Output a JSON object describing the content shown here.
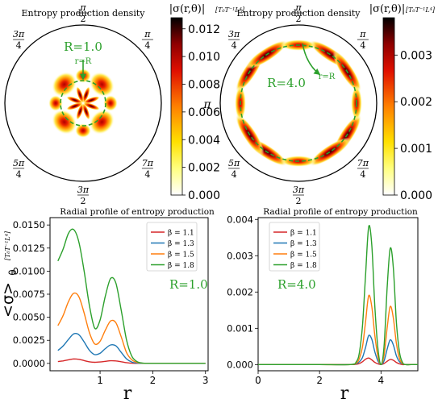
{
  "colors": {
    "series": [
      "#d62728",
      "#1f77b4",
      "#ff7f0e",
      "#2ca02c"
    ],
    "annotation": "#2ca02c",
    "circle": "#000000"
  },
  "polar_angle_labels": [
    {
      "num": "π",
      "den": "2",
      "angle_deg": 90
    },
    {
      "num": "π",
      "den": "4",
      "angle_deg": 45
    },
    {
      "num": "",
      "den": "",
      "text": "0",
      "angle_deg": 0
    },
    {
      "num": "7π",
      "den": "4",
      "angle_deg": -45
    },
    {
      "num": "3π",
      "den": "2",
      "angle_deg": -90
    },
    {
      "num": "5π",
      "den": "4",
      "angle_deg": -135
    },
    {
      "num": "",
      "den": "",
      "text": "π",
      "angle_deg": 180
    },
    {
      "num": "3π",
      "den": "4",
      "angle_deg": 135
    }
  ],
  "chart_data": [
    {
      "type": "heatmap",
      "projection": "polar",
      "title": "Entropy production density",
      "colorbar_label": "|σ(r,θ)|",
      "colorbar_unit": "[T₀T⁻¹L⁴]",
      "colorbar_ticks": [
        "0.000",
        "0.002",
        "0.004",
        "0.006",
        "0.008",
        "0.010",
        "0.012"
      ],
      "colorbar_range": [
        0,
        0.0128
      ],
      "annotation_main": "R=1.0",
      "annotation_arrow": "r=R",
      "R": 1.0
    },
    {
      "type": "heatmap",
      "projection": "polar",
      "title": "Entropy production density",
      "colorbar_label": "|σ(r,θ)|",
      "colorbar_unit": "[T₀T⁻¹L⁴]",
      "colorbar_ticks": [
        "0.000",
        "0.001",
        "0.002",
        "0.003"
      ],
      "colorbar_range": [
        0,
        0.0038
      ],
      "annotation_main": "R=4.0",
      "annotation_arrow": "r=R",
      "R": 4.0
    },
    {
      "type": "line",
      "title": "Radial profile of entropy production",
      "xlabel": "r",
      "ylabel": "<σ>θ",
      "ylabel_main": "<σ>",
      "ylabel_sub": "θ",
      "yunit": "[T₀T⁻¹L⁴]",
      "annotation": "R=1.0",
      "xlim": [
        0.05,
        3.05
      ],
      "ylim": [
        -0.0008,
        0.0158
      ],
      "xticks": [
        1,
        2,
        3
      ],
      "xtick_labels": [
        "1",
        "2",
        "3"
      ],
      "yticks": [
        0,
        0.0025,
        0.005,
        0.0075,
        0.01,
        0.0125,
        0.015
      ],
      "ytick_labels": [
        "0.0000",
        "0.0025",
        "0.0050",
        "0.0075",
        "0.0100",
        "0.0125",
        "0.0150"
      ],
      "legend_position": "top-right",
      "x": [
        0.2,
        0.3,
        0.4,
        0.5,
        0.6,
        0.7,
        0.8,
        0.9,
        1.0,
        1.1,
        1.2,
        1.3,
        1.4,
        1.5,
        1.6,
        1.7,
        1.8,
        1.9,
        2.0,
        2.2,
        2.5,
        3.0
      ],
      "series": [
        {
          "name": "β = 1.1",
          "values": [
            0.0002,
            0.00027,
            0.00039,
            0.00048,
            0.00044,
            0.0003,
            0.00017,
            0.00012,
            0.00015,
            0.00022,
            0.00028,
            0.00027,
            0.00018,
            8e-05,
            2e-05,
            0.0,
            0.0,
            0.0,
            0.0,
            0.0,
            0.0,
            0.0
          ]
        },
        {
          "name": "β = 1.3",
          "values": [
            0.0014,
            0.0019,
            0.0026,
            0.0032,
            0.0031,
            0.0023,
            0.0014,
            0.00095,
            0.0011,
            0.0016,
            0.002,
            0.0019,
            0.0012,
            0.0005,
            0.00015,
            3e-05,
            0.0,
            0.0,
            0.0,
            0.0,
            0.0,
            0.0
          ]
        },
        {
          "name": "β = 1.5",
          "values": [
            0.0041,
            0.0052,
            0.0067,
            0.0076,
            0.0072,
            0.0054,
            0.0033,
            0.0021,
            0.0024,
            0.0036,
            0.0046,
            0.0044,
            0.0029,
            0.0012,
            0.0004,
            0.0001,
            2e-05,
            0.0,
            0.0,
            0.0,
            0.0,
            0.0
          ]
        },
        {
          "name": "β = 1.8",
          "values": [
            0.0111,
            0.0124,
            0.0141,
            0.0145,
            0.0131,
            0.0099,
            0.0062,
            0.0038,
            0.0047,
            0.0073,
            0.0092,
            0.0087,
            0.0058,
            0.0026,
            0.0008,
            0.0002,
            4e-05,
            0.0,
            0.0,
            0.0,
            0.0,
            0.0
          ]
        }
      ]
    },
    {
      "type": "line",
      "title": "Radial profile of entropy production",
      "xlabel": "r",
      "annotation": "R=4.0",
      "xlim": [
        0,
        5.2
      ],
      "ylim": [
        -0.00017,
        0.00405
      ],
      "xticks": [
        0,
        2,
        4
      ],
      "xtick_labels": [
        "0",
        "2",
        "4"
      ],
      "yticks": [
        0,
        0.001,
        0.002,
        0.003,
        0.004
      ],
      "ytick_labels": [
        "0.000",
        "0.001",
        "0.002",
        "0.003",
        "0.004"
      ],
      "legend_position": "top-left",
      "x": [
        0.0,
        1.0,
        2.0,
        3.0,
        3.2,
        3.3,
        3.4,
        3.5,
        3.6,
        3.7,
        3.8,
        3.9,
        4.0,
        4.1,
        4.2,
        4.3,
        4.4,
        4.5,
        4.6,
        4.7,
        4.8,
        5.0,
        5.2
      ],
      "series": [
        {
          "name": "β = 1.1",
          "values": [
            0.0,
            0.0,
            0.0,
            0.0,
            1e-05,
            3e-05,
            8e-05,
            0.00015,
            0.00018,
            0.00013,
            6e-05,
            2e-05,
            0.0,
            3e-05,
            9e-05,
            0.00014,
            0.00012,
            6e-05,
            2e-05,
            0.0,
            0.0,
            0.0,
            0.0
          ]
        },
        {
          "name": "β = 1.3",
          "values": [
            0.0,
            0.0,
            0.0,
            0.0,
            2e-05,
            8e-05,
            0.0002,
            0.00048,
            0.0008,
            0.0007,
            0.00035,
            0.0001,
            0.0,
            0.0001,
            0.00042,
            0.00068,
            0.00055,
            0.00025,
            8e-05,
            2e-05,
            0.0,
            0.0,
            0.0
          ]
        },
        {
          "name": "β = 1.5",
          "values": [
            0.0,
            0.0,
            0.0,
            0.0,
            4e-05,
            0.00018,
            0.0005,
            0.0012,
            0.0019,
            0.0016,
            0.0008,
            0.00022,
            0.0,
            0.00025,
            0.001,
            0.0016,
            0.0013,
            0.0006,
            0.00017,
            3e-05,
            0.0,
            0.0,
            0.0
          ]
        },
        {
          "name": "β = 1.8",
          "values": [
            0.0,
            0.0,
            0.0,
            0.0,
            8e-05,
            0.00035,
            0.0011,
            0.0025,
            0.0038,
            0.0033,
            0.0016,
            0.00045,
            0.0,
            0.0005,
            0.0021,
            0.0032,
            0.0027,
            0.0012,
            0.00035,
            6e-05,
            0.0,
            0.0,
            0.0
          ]
        }
      ]
    }
  ]
}
